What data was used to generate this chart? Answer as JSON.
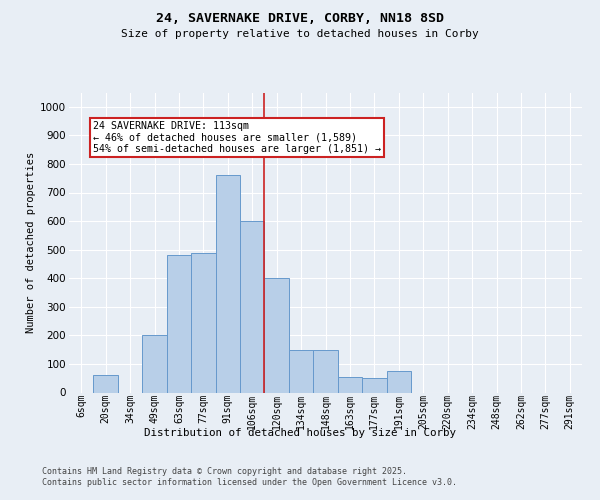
{
  "title_line1": "24, SAVERNAKE DRIVE, CORBY, NN18 8SD",
  "title_line2": "Size of property relative to detached houses in Corby",
  "xlabel": "Distribution of detached houses by size in Corby",
  "ylabel": "Number of detached properties",
  "categories": [
    "6sqm",
    "20sqm",
    "34sqm",
    "49sqm",
    "63sqm",
    "77sqm",
    "91sqm",
    "106sqm",
    "120sqm",
    "134sqm",
    "148sqm",
    "163sqm",
    "177sqm",
    "191sqm",
    "205sqm",
    "220sqm",
    "234sqm",
    "248sqm",
    "262sqm",
    "277sqm",
    "291sqm"
  ],
  "values": [
    0,
    60,
    0,
    200,
    480,
    490,
    760,
    600,
    400,
    150,
    150,
    55,
    50,
    75,
    0,
    0,
    0,
    0,
    0,
    0,
    0
  ],
  "bar_color": "#b8cfe8",
  "bar_edge_color": "#6699cc",
  "vline_color": "#cc2222",
  "annotation_text": "24 SAVERNAKE DRIVE: 113sqm\n← 46% of detached houses are smaller (1,589)\n54% of semi-detached houses are larger (1,851) →",
  "annotation_box_color": "#cc2222",
  "annotation_fill": "#ffffff",
  "ylim": [
    0,
    1050
  ],
  "yticks": [
    0,
    100,
    200,
    300,
    400,
    500,
    600,
    700,
    800,
    900,
    1000
  ],
  "background_color": "#e8eef5",
  "plot_bg_color": "#e8eef5",
  "grid_color": "#ffffff",
  "footer": "Contains HM Land Registry data © Crown copyright and database right 2025.\nContains public sector information licensed under the Open Government Licence v3.0."
}
